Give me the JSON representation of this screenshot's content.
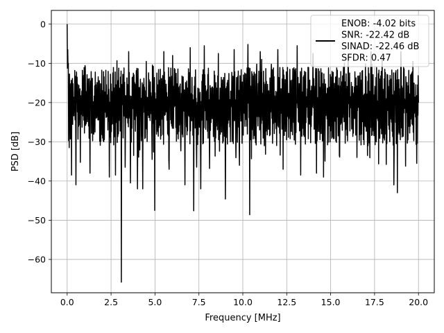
{
  "chart_data": {
    "type": "line",
    "title": "",
    "xlabel": "Frequency [MHz]",
    "ylabel": "PSD [dB]",
    "xlim": [
      -0.9,
      20.9
    ],
    "ylim": [
      -68.5,
      3.5
    ],
    "xticks": [
      0.0,
      2.5,
      5.0,
      7.5,
      10.0,
      12.5,
      15.0,
      17.5,
      20.0
    ],
    "xtick_labels": [
      "0.0",
      "2.5",
      "5.0",
      "7.5",
      "10.0",
      "12.5",
      "15.0",
      "17.5",
      "20.0"
    ],
    "yticks": [
      0,
      -10,
      -20,
      -30,
      -40,
      -50,
      -60
    ],
    "ytick_labels": [
      "0",
      "−10",
      "−20",
      "−30",
      "−40",
      "−50",
      "−60"
    ],
    "grid": true,
    "legend_position": "top-right",
    "legend_entries": [
      "ENOB: -4.02 bits",
      "SNR: -22.42 dB",
      "SINAD: -22.46 dB",
      "SFDR: 0.47"
    ],
    "line_color": "#000000",
    "series": [
      {
        "x_start": 0.0,
        "x_end": 20.0,
        "n_points": 1200,
        "noise_floor_range_db": [
          -31,
          -11
        ],
        "peaks": [
          {
            "x": 0.0,
            "y": 0.0
          },
          {
            "x": 0.03,
            "y": -6.5
          }
        ],
        "dips": [
          {
            "x": 0.12,
            "y": -31.5
          },
          {
            "x": 0.25,
            "y": -38.5
          },
          {
            "x": 0.5,
            "y": -41.0
          },
          {
            "x": 1.3,
            "y": -38.0
          },
          {
            "x": 2.4,
            "y": -39.0
          },
          {
            "x": 2.75,
            "y": -38.5
          },
          {
            "x": 3.08,
            "y": -65.8
          },
          {
            "x": 3.3,
            "y": -36.5
          },
          {
            "x": 3.6,
            "y": -40.5
          },
          {
            "x": 4.0,
            "y": -42.0
          },
          {
            "x": 4.3,
            "y": -42.0
          },
          {
            "x": 4.98,
            "y": -47.5
          },
          {
            "x": 5.8,
            "y": -37.0
          },
          {
            "x": 6.7,
            "y": -41.0
          },
          {
            "x": 7.2,
            "y": -47.6
          },
          {
            "x": 7.6,
            "y": -42.0
          },
          {
            "x": 8.1,
            "y": -36.8
          },
          {
            "x": 9.0,
            "y": -44.6
          },
          {
            "x": 9.8,
            "y": -36.0
          },
          {
            "x": 10.4,
            "y": -48.6
          },
          {
            "x": 11.0,
            "y": -36.5
          },
          {
            "x": 12.3,
            "y": -37.0
          },
          {
            "x": 13.3,
            "y": -38.5
          },
          {
            "x": 14.2,
            "y": -38.0
          },
          {
            "x": 14.6,
            "y": -39.0
          },
          {
            "x": 15.5,
            "y": -33.5
          },
          {
            "x": 16.5,
            "y": -34.0
          },
          {
            "x": 17.1,
            "y": -33.5
          },
          {
            "x": 18.6,
            "y": -41.0
          },
          {
            "x": 18.8,
            "y": -43.0
          },
          {
            "x": 19.9,
            "y": -35.5
          }
        ],
        "spikes": [
          {
            "x": 3.5,
            "y": -7.0
          },
          {
            "x": 4.5,
            "y": -9.5
          },
          {
            "x": 5.5,
            "y": -7.0
          },
          {
            "x": 6.0,
            "y": -8.0
          },
          {
            "x": 7.0,
            "y": -6.0
          },
          {
            "x": 7.8,
            "y": -5.5
          },
          {
            "x": 8.6,
            "y": -7.5
          },
          {
            "x": 9.5,
            "y": -6.5
          },
          {
            "x": 10.3,
            "y": -5.2
          },
          {
            "x": 11.0,
            "y": -7.0
          },
          {
            "x": 12.0,
            "y": -6.5
          },
          {
            "x": 13.1,
            "y": -5.5
          },
          {
            "x": 14.0,
            "y": -7.5
          },
          {
            "x": 16.0,
            "y": -8.0
          },
          {
            "x": 17.3,
            "y": -7.0
          },
          {
            "x": 19.0,
            "y": -7.0
          }
        ]
      }
    ]
  }
}
